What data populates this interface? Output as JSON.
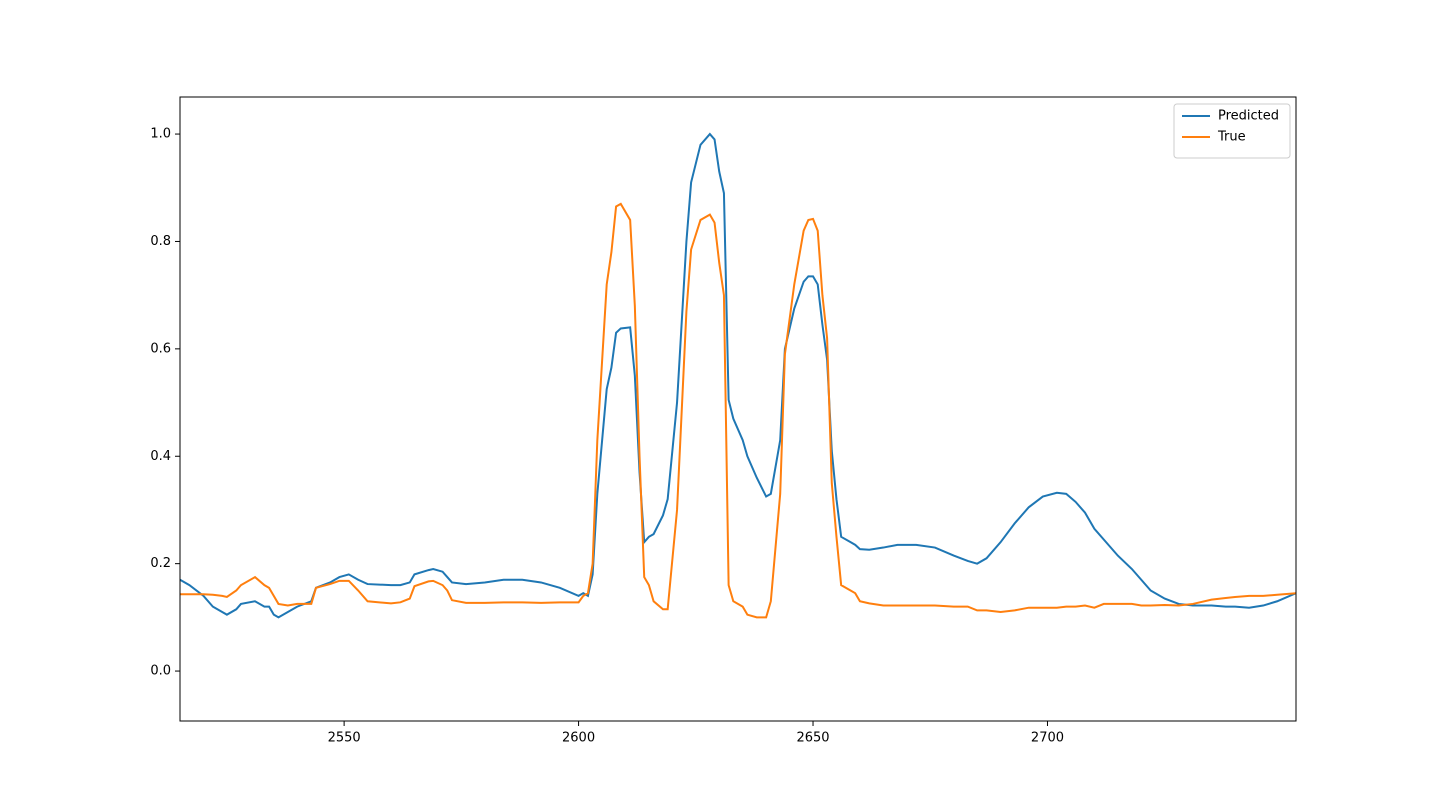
{
  "chart_data": {
    "type": "line",
    "x": [
      2515,
      2517,
      2520,
      2522,
      2524,
      2525,
      2527,
      2528,
      2531,
      2533,
      2534,
      2535,
      2536,
      2538,
      2540,
      2543,
      2544,
      2547,
      2549,
      2551,
      2553,
      2555,
      2560,
      2562,
      2564,
      2565,
      2568,
      2569,
      2571,
      2572,
      2573,
      2576,
      2580,
      2584,
      2588,
      2592,
      2596,
      2600,
      2601,
      2602,
      2603,
      2604,
      2606,
      2607,
      2608,
      2609,
      2611,
      2612,
      2613,
      2614,
      2615,
      2616,
      2618,
      2619,
      2621,
      2623,
      2624,
      2626,
      2628,
      2629,
      2630,
      2631,
      2632,
      2633,
      2635,
      2636,
      2638,
      2640,
      2641,
      2643,
      2644,
      2646,
      2648,
      2649,
      2650,
      2651,
      2652,
      2653,
      2654,
      2655,
      2656,
      2658,
      2659,
      2660,
      2662,
      2665,
      2668,
      2672,
      2676,
      2680,
      2683,
      2685,
      2687,
      2690,
      2693,
      2696,
      2699,
      2702,
      2704,
      2706,
      2708,
      2710,
      2712,
      2715,
      2718,
      2720,
      2722,
      2725,
      2728,
      2731,
      2735,
      2738,
      2740,
      2743,
      2746,
      2749,
      2753
    ],
    "series": [
      {
        "name": "Predicted",
        "color": "#1f77b4",
        "values": [
          0.17,
          0.16,
          0.14,
          0.12,
          0.11,
          0.105,
          0.115,
          0.125,
          0.13,
          0.12,
          0.12,
          0.105,
          0.1,
          0.11,
          0.12,
          0.13,
          0.155,
          0.165,
          0.175,
          0.18,
          0.17,
          0.162,
          0.16,
          0.16,
          0.165,
          0.18,
          0.188,
          0.19,
          0.185,
          0.175,
          0.165,
          0.162,
          0.165,
          0.17,
          0.17,
          0.165,
          0.155,
          0.14,
          0.145,
          0.14,
          0.18,
          0.33,
          0.525,
          0.565,
          0.63,
          0.638,
          0.64,
          0.55,
          0.37,
          0.24,
          0.25,
          0.255,
          0.29,
          0.32,
          0.5,
          0.8,
          0.91,
          0.98,
          1.0,
          0.99,
          0.93,
          0.89,
          0.505,
          0.47,
          0.43,
          0.4,
          0.36,
          0.325,
          0.33,
          0.43,
          0.6,
          0.675,
          0.725,
          0.735,
          0.735,
          0.72,
          0.645,
          0.58,
          0.41,
          0.32,
          0.25,
          0.24,
          0.235,
          0.227,
          0.226,
          0.23,
          0.235,
          0.235,
          0.23,
          0.215,
          0.205,
          0.2,
          0.21,
          0.24,
          0.275,
          0.305,
          0.325,
          0.332,
          0.33,
          0.315,
          0.295,
          0.265,
          0.245,
          0.215,
          0.19,
          0.17,
          0.15,
          0.135,
          0.125,
          0.122,
          0.122,
          0.12,
          0.12,
          0.118,
          0.122,
          0.13,
          0.145
        ]
      },
      {
        "name": "True",
        "color": "#ff7f0e",
        "values": [
          0.143,
          0.143,
          0.143,
          0.142,
          0.14,
          0.138,
          0.15,
          0.16,
          0.175,
          0.16,
          0.155,
          0.14,
          0.125,
          0.122,
          0.125,
          0.125,
          0.155,
          0.162,
          0.168,
          0.168,
          0.15,
          0.13,
          0.126,
          0.128,
          0.135,
          0.158,
          0.167,
          0.168,
          0.16,
          0.15,
          0.132,
          0.127,
          0.127,
          0.128,
          0.128,
          0.127,
          0.128,
          0.128,
          0.14,
          0.145,
          0.2,
          0.43,
          0.72,
          0.78,
          0.865,
          0.87,
          0.84,
          0.68,
          0.4,
          0.175,
          0.16,
          0.13,
          0.115,
          0.115,
          0.3,
          0.67,
          0.785,
          0.84,
          0.85,
          0.835,
          0.76,
          0.7,
          0.16,
          0.13,
          0.12,
          0.105,
          0.1,
          0.1,
          0.13,
          0.33,
          0.59,
          0.72,
          0.82,
          0.84,
          0.842,
          0.82,
          0.7,
          0.62,
          0.35,
          0.25,
          0.16,
          0.15,
          0.145,
          0.13,
          0.126,
          0.122,
          0.122,
          0.122,
          0.122,
          0.12,
          0.12,
          0.113,
          0.113,
          0.11,
          0.113,
          0.118,
          0.118,
          0.118,
          0.12,
          0.12,
          0.122,
          0.118,
          0.125,
          0.125,
          0.125,
          0.122,
          0.122,
          0.123,
          0.122,
          0.125,
          0.133,
          0.136,
          0.138,
          0.14,
          0.14,
          0.142,
          0.145
        ]
      }
    ],
    "xlim": [
      2515,
      2753
    ],
    "xticks": [
      2550,
      2600,
      2650,
      2700
    ],
    "ylim": [
      -0.093,
      1.069
    ],
    "yticks": [
      {
        "value": 0,
        "label": "0.0"
      },
      0.2,
      0.4,
      0.6,
      0.8,
      {
        "value": 1,
        "label": "1.0"
      }
    ],
    "legend": "upper right"
  }
}
